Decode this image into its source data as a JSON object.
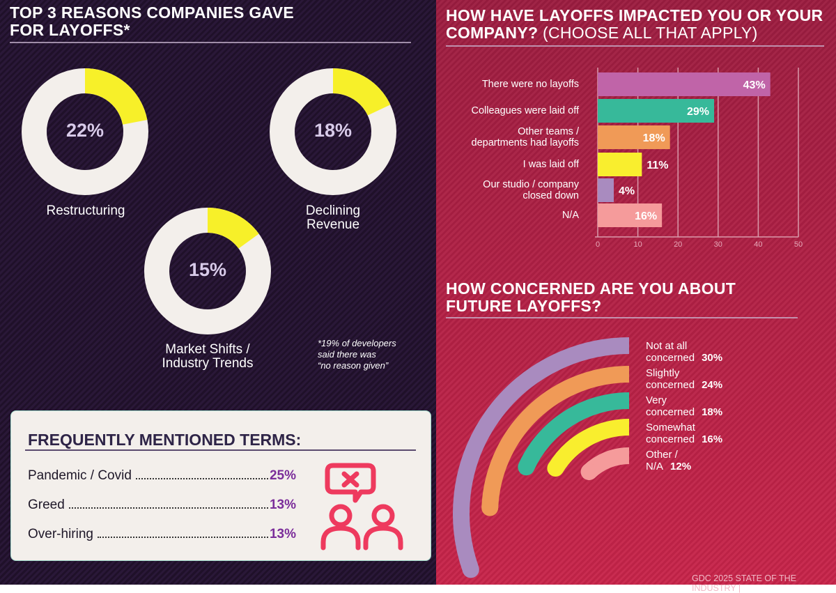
{
  "left": {
    "title_line1": "TOP 3 REASONS COMPANIES GAVE",
    "title_line2": "FOR LAYOFFS*",
    "donuts": [
      {
        "label": "Restructuring",
        "value": 22,
        "display": "22%"
      },
      {
        "label_line1": "Declining",
        "label_line2": "Revenue",
        "value": 18,
        "display": "18%"
      },
      {
        "label_line1": "Market Shifts /",
        "label_line2": "Industry Trends",
        "value": 15,
        "display": "15%"
      }
    ],
    "footnote": [
      "*19% of developers",
      "said there was",
      "“no reason given”"
    ],
    "colors": {
      "fill": "#f7f029",
      "track": "#f3efeb"
    }
  },
  "terms": {
    "title": "FREQUENTLY MENTIONED TERMS:",
    "items": [
      {
        "label": "Pandemic / Covid",
        "value": "25%"
      },
      {
        "label": "Greed",
        "value": "13%"
      },
      {
        "label": "Over-hiring",
        "value": "13%"
      }
    ],
    "icon": "people-disagree-speech-bubble-x-icon"
  },
  "chart_data": [
    {
      "type": "bar",
      "orientation": "horizontal",
      "title": "HOW HAVE LAYOFFS IMPACTED YOU OR YOUR COMPANY?",
      "subtitle": "(CHOOSE ALL THAT APPLY)",
      "categories": [
        [
          "There were no layoffs"
        ],
        [
          "Colleagues were laid off"
        ],
        [
          "Other teams /",
          "departments had layoffs"
        ],
        [
          "I was laid off"
        ],
        [
          "Our studio / company",
          "closed down"
        ],
        [
          "N/A"
        ]
      ],
      "values": [
        43,
        29,
        18,
        11,
        4,
        16
      ],
      "labels": [
        "43%",
        "29%",
        "18%",
        "11%",
        "4%",
        "16%"
      ],
      "colors": [
        "#c064a8",
        "#37b99a",
        "#f09a57",
        "#f9ee2e",
        "#a98bbf",
        "#f59b9b"
      ],
      "xlim": [
        0,
        50
      ],
      "xticks": [
        "0",
        "10",
        "20",
        "30",
        "40",
        "50"
      ],
      "grid": true
    },
    {
      "type": "radial-bar",
      "title": "HOW CONCERNED ARE YOU ABOUT FUTURE LAYOFFS?",
      "title_line1": "HOW CONCERNED ARE YOU ABOUT",
      "title_line2": "FUTURE LAYOFFS?",
      "categories": [
        "Not at all concerned",
        "Slightly concerned",
        "Very concerned",
        "Somewhat concerned",
        "Other / N/A"
      ],
      "values": [
        30,
        24,
        18,
        16,
        12
      ],
      "labels": [
        "30%",
        "24%",
        "18%",
        "16%",
        "12%"
      ],
      "colors": [
        "#a98bbf",
        "#f09a57",
        "#37b99a",
        "#f9ee2e",
        "#f59b9b"
      ]
    }
  ],
  "footer": "GDC 2025 STATE OF THE INDUSTRY  |"
}
